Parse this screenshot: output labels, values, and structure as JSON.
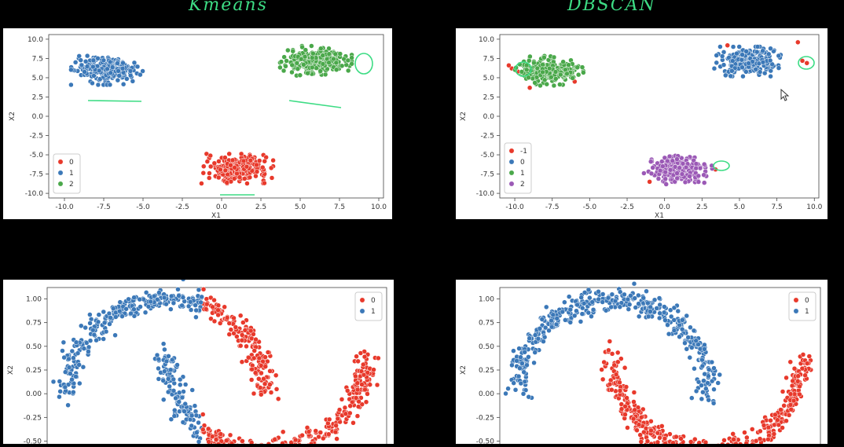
{
  "titles": {
    "left": "Kmeans",
    "right": "DBSCAN"
  },
  "colors": {
    "red": "#e8392b",
    "blue": "#3b78b8",
    "green": "#4aa84a",
    "purple": "#9b59b6",
    "annot": "#3ddc84"
  },
  "chart_data": [
    {
      "id": "kmeans_blobs",
      "type": "scatter",
      "xlabel": "X1",
      "ylabel": "X2",
      "xlim": [
        -11,
        10.3
      ],
      "ylim": [
        -10.6,
        10.6
      ],
      "xticks": [
        "-10.0",
        "-7.5",
        "-5.0",
        "-2.5",
        "0.0",
        "2.5",
        "5.0",
        "7.5",
        "10.0"
      ],
      "xtick_values": [
        -10,
        -7.5,
        -5,
        -2.5,
        0,
        2.5,
        5,
        7.5,
        10
      ],
      "yticks": [
        "10.0",
        "7.5",
        "5.0",
        "2.5",
        "0.0",
        "-2.5",
        "-5.0",
        "-7.5",
        "-10.0"
      ],
      "ytick_values": [
        10,
        7.5,
        5,
        2.5,
        0,
        -2.5,
        -5,
        -7.5,
        -10
      ],
      "legend": {
        "position": "lower-left",
        "entries": [
          "0",
          "1",
          "2"
        ]
      },
      "series": [
        {
          "name": "0",
          "color": "#e8392b",
          "cx": 1.0,
          "cy": -6.8,
          "sx": 0.95,
          "sy": 0.8,
          "n": 260
        },
        {
          "name": "1",
          "color": "#3b78b8",
          "cx": -7.3,
          "cy": 6.0,
          "sx": 0.95,
          "sy": 0.8,
          "n": 260
        },
        {
          "name": "2",
          "color": "#4aa84a",
          "cx": 6.0,
          "cy": 7.2,
          "sx": 0.95,
          "sy": 0.8,
          "n": 260
        }
      ]
    },
    {
      "id": "dbscan_blobs",
      "type": "scatter",
      "xlabel": "X1",
      "ylabel": "X2",
      "xlim": [
        -11,
        10.3
      ],
      "ylim": [
        -10.6,
        10.6
      ],
      "xticks": [
        "-10.0",
        "-7.5",
        "-5.0",
        "-2.5",
        "0.0",
        "2.5",
        "5.0",
        "7.5",
        "10.0"
      ],
      "xtick_values": [
        -10,
        -7.5,
        -5,
        -2.5,
        0,
        2.5,
        5,
        7.5,
        10
      ],
      "yticks": [
        "10.0",
        "7.5",
        "5.0",
        "2.5",
        "0.0",
        "-2.5",
        "-5.0",
        "-7.5",
        "-10.0"
      ],
      "ytick_values": [
        10,
        7.5,
        5,
        2.5,
        0,
        -2.5,
        -5,
        -7.5,
        -10
      ],
      "legend": {
        "position": "lower-left",
        "entries": [
          "-1",
          "0",
          "1",
          "2"
        ]
      },
      "series": [
        {
          "name": "-1",
          "color": "#e8392b",
          "points": [
            [
              -10.2,
              6.2
            ],
            [
              -9.8,
              5.8
            ],
            [
              -10.4,
              6.6
            ],
            [
              9.2,
              7.2
            ],
            [
              9.5,
              6.9
            ],
            [
              3.4,
              -6.9
            ],
            [
              -1.0,
              -8.5
            ],
            [
              8.9,
              9.6
            ],
            [
              4.2,
              9.2
            ],
            [
              -6,
              4.5
            ],
            [
              -9,
              3.7
            ]
          ]
        },
        {
          "name": "0",
          "color": "#3b78b8",
          "cx": 5.6,
          "cy": 7.1,
          "sx": 0.95,
          "sy": 0.8,
          "n": 250
        },
        {
          "name": "1",
          "color": "#4aa84a",
          "cx": -7.7,
          "cy": 5.9,
          "sx": 0.95,
          "sy": 0.8,
          "n": 250
        },
        {
          "name": "2",
          "color": "#9b59b6",
          "cx": 0.9,
          "cy": -6.9,
          "sx": 0.95,
          "sy": 0.8,
          "n": 250
        }
      ]
    },
    {
      "id": "kmeans_moons",
      "type": "scatter",
      "ylabel": "X2",
      "xlim": [
        -1.2,
        2.2
      ],
      "ylim": [
        -0.62,
        1.12
      ],
      "yticks": [
        "1.00",
        "0.75",
        "0.50",
        "0.25",
        "0.00",
        "-0.25",
        "-0.50"
      ],
      "ytick_values": [
        1,
        0.75,
        0.5,
        0.25,
        0,
        -0.25,
        -0.5
      ],
      "legend": {
        "position": "top-right",
        "entries": [
          "0",
          "1"
        ]
      },
      "split_x": 0.35,
      "series": [
        {
          "name": "0",
          "color": "#e8392b"
        },
        {
          "name": "1",
          "color": "#3b78b8"
        }
      ]
    },
    {
      "id": "dbscan_moons",
      "type": "scatter",
      "ylabel": "X2",
      "xlim": [
        -1.2,
        2.2
      ],
      "ylim": [
        -0.62,
        1.12
      ],
      "yticks": [
        "1.00",
        "0.75",
        "0.50",
        "0.25",
        "0.00",
        "-0.25",
        "-0.50"
      ],
      "ytick_values": [
        1,
        0.75,
        0.5,
        0.25,
        0,
        -0.25,
        -0.5
      ],
      "legend": {
        "position": "top-right",
        "entries": [
          "0",
          "1"
        ]
      },
      "series": [
        {
          "name": "0",
          "color": "#e8392b"
        },
        {
          "name": "1",
          "color": "#3b78b8"
        }
      ]
    }
  ]
}
